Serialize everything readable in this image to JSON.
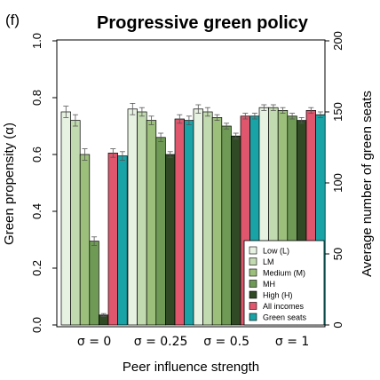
{
  "chart_data": {
    "type": "bar",
    "panel_label": "(f)",
    "title": "Progressive green policy",
    "xlabel": "Peer influence strength",
    "ylabel": "Green propensity (α)",
    "ylabel_right": "Average number of green seats",
    "ylim": [
      0,
      1
    ],
    "ylim_right": [
      0,
      200
    ],
    "yticks": [
      "0.0",
      "0.2",
      "0.4",
      "0.6",
      "0.8",
      "1.0"
    ],
    "yticks_right": [
      "0",
      "50",
      "100",
      "150",
      "200"
    ],
    "categories": [
      "σ = 0",
      "σ = 0.25",
      "σ = 0.5",
      "σ = 1"
    ],
    "legend_position": "bottom-right",
    "series": [
      {
        "name": "Low (L)",
        "color": "#e8f2e2",
        "values": [
          0.75,
          0.76,
          0.76,
          0.765
        ],
        "errors": [
          0.02,
          0.02,
          0.015,
          0.01
        ]
      },
      {
        "name": "LM",
        "color": "#c2dab0",
        "values": [
          0.72,
          0.75,
          0.75,
          0.765
        ],
        "errors": [
          0.02,
          0.015,
          0.015,
          0.01
        ]
      },
      {
        "name": "Medium (M)",
        "color": "#9cc07c",
        "values": [
          0.6,
          0.72,
          0.73,
          0.755
        ],
        "errors": [
          0.02,
          0.015,
          0.01,
          0.01
        ]
      },
      {
        "name": "MH",
        "color": "#6e9a55",
        "values": [
          0.295,
          0.66,
          0.7,
          0.735
        ],
        "errors": [
          0.015,
          0.015,
          0.01,
          0.01
        ]
      },
      {
        "name": "High (H)",
        "color": "#2f4a25",
        "values": [
          0.035,
          0.6,
          0.665,
          0.72
        ],
        "errors": [
          0.005,
          0.01,
          0.01,
          0.01
        ]
      },
      {
        "name": "All incomes",
        "color": "#e0566d",
        "values": [
          0.605,
          0.725,
          0.735,
          0.755
        ],
        "errors": [
          0.015,
          0.015,
          0.01,
          0.01
        ]
      },
      {
        "name": "Green seats",
        "color": "#1aa3a6",
        "values": [
          0.595,
          0.72,
          0.735,
          0.74
        ],
        "errors": [
          0.015,
          0.015,
          0.01,
          0.01
        ]
      }
    ]
  }
}
